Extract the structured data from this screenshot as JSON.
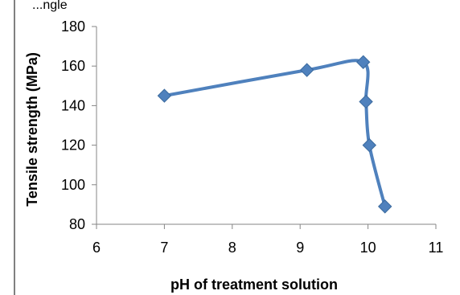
{
  "header": {
    "caption_fragment": "...ngle"
  },
  "chart_data": {
    "type": "line",
    "title": "",
    "xlabel": "pH of treatment solution",
    "ylabel": "Tensile strength (MPa)",
    "xlim": [
      6,
      11
    ],
    "ylim": [
      80,
      180
    ],
    "x_ticks": [
      6,
      7,
      8,
      9,
      10,
      11
    ],
    "y_ticks": [
      80,
      100,
      120,
      140,
      160,
      180
    ],
    "grid": false,
    "legend": "none",
    "series": [
      {
        "color": "#4F81BD",
        "marker": "diamond",
        "points": [
          {
            "x": 7.0,
            "y": 145
          },
          {
            "x": 9.1,
            "y": 158
          },
          {
            "x": 9.93,
            "y": 162
          },
          {
            "x": 9.97,
            "y": 142
          },
          {
            "x": 10.02,
            "y": 120
          },
          {
            "x": 10.25,
            "y": 89
          }
        ]
      }
    ]
  }
}
